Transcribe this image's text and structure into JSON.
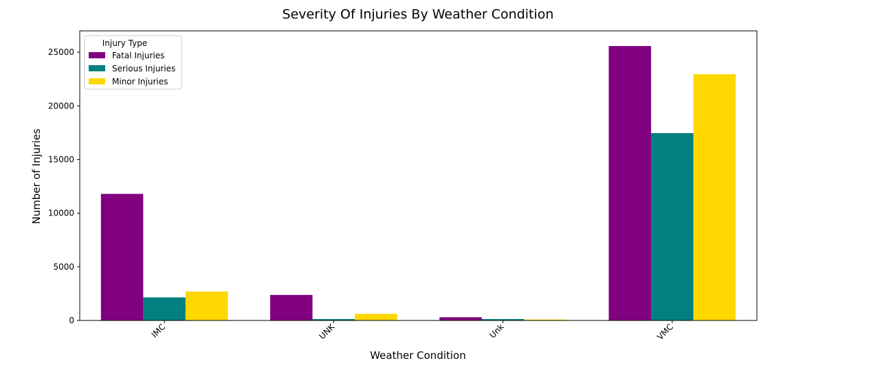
{
  "chart_data": {
    "type": "bar",
    "title": "Severity Of Injuries By Weather Condition",
    "xlabel": "Weather Condition",
    "ylabel": "Number of Injuries",
    "categories": [
      "IMC",
      "UNK",
      "Unk",
      "VMC"
    ],
    "series": [
      {
        "name": "Fatal Injuries",
        "color": "#800080",
        "values": [
          11800,
          2380,
          300,
          25580
        ]
      },
      {
        "name": "Serious Injuries",
        "color": "#008080",
        "values": [
          2150,
          130,
          130,
          17460
        ]
      },
      {
        "name": "Minor Injuries",
        "color": "#FFD700",
        "values": [
          2700,
          620,
          90,
          22950
        ]
      }
    ],
    "ylim": [
      0,
      26990
    ],
    "yticks": [
      0,
      5000,
      10000,
      15000,
      20000,
      25000
    ],
    "legend": {
      "title": "Injury Type",
      "position": "upper-left"
    },
    "grid": false
  }
}
